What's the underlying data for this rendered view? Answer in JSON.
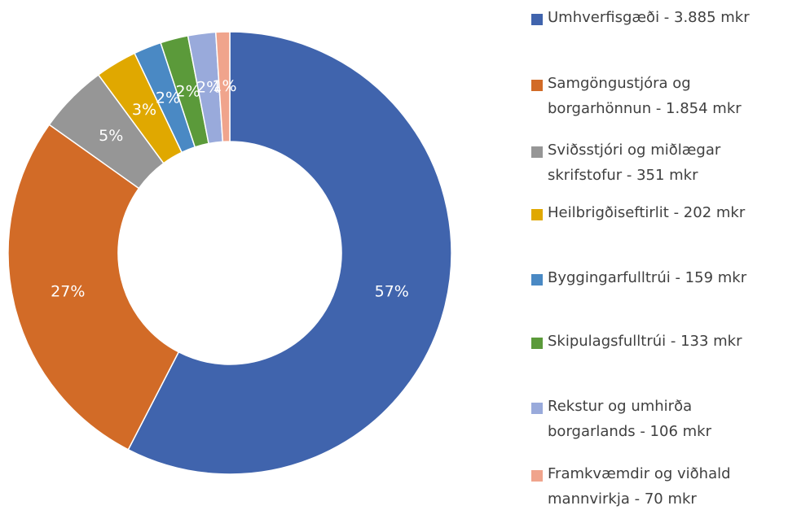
{
  "chart_data": {
    "type": "donut",
    "categories": [
      "Umhverfisgæði - 3.885 mkr",
      "Samgöngustjóra og borgarhönnun - 1.854 mkr",
      "Sviðsstjóri og miðlægar skrifstofur - 351 mkr",
      "Heilbrigðiseftirlit - 202 mkr",
      "Byggingarfulltrúi - 159 mkr",
      "Skipulagsfulltrúi - 133 mkr",
      "Rekstur og umhirða borgarlands - 106 mkr",
      "Framkvæmdir og viðhald mannvirkja - 70 mkr"
    ],
    "values": [
      57,
      27,
      5,
      3,
      2,
      2,
      2,
      1
    ],
    "value_labels": [
      "57%",
      "27%",
      "5%",
      "3%",
      "2%",
      "2%",
      "2%",
      "1%"
    ],
    "colors": [
      "#4064ad",
      "#d26b27",
      "#969696",
      "#e0a800",
      "#4a89c4",
      "#5b9a3a",
      "#99aadb",
      "#f0a48c"
    ],
    "legend": "right"
  }
}
